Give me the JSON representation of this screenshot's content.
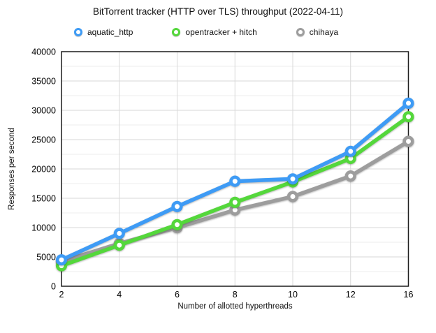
{
  "chart_data": {
    "type": "line",
    "title": "BitTorrent tracker (HTTP over TLS) throughput (2022-04-11)",
    "xlabel": "Number of allotted hyperthreads",
    "ylabel": "Responses per second",
    "categories": [
      2,
      4,
      6,
      8,
      10,
      12,
      16
    ],
    "series": [
      {
        "name": "aquatic_http",
        "color": "#3E9BF5",
        "values": [
          4500,
          9000,
          13600,
          17900,
          18300,
          23000,
          31200
        ]
      },
      {
        "name": "opentracker + hitch",
        "color": "#54D73B",
        "values": [
          3500,
          7000,
          10500,
          14300,
          17800,
          21800,
          28900
        ]
      },
      {
        "name": "chihaya",
        "color": "#9D9D9D",
        "values": [
          4200,
          7300,
          10000,
          13000,
          15300,
          18800,
          24700
        ]
      }
    ],
    "ylim": [
      0,
      40000
    ],
    "ytick_step": 5000,
    "yminor_step": 2500,
    "grid": true,
    "legend_position": "top",
    "colors": {
      "frame": "#1c1c1c",
      "grid_major": "#d7d7d7",
      "grid_minor": "#ececec",
      "grid_vertical": "#d9d9d9",
      "text": "#000000"
    }
  }
}
